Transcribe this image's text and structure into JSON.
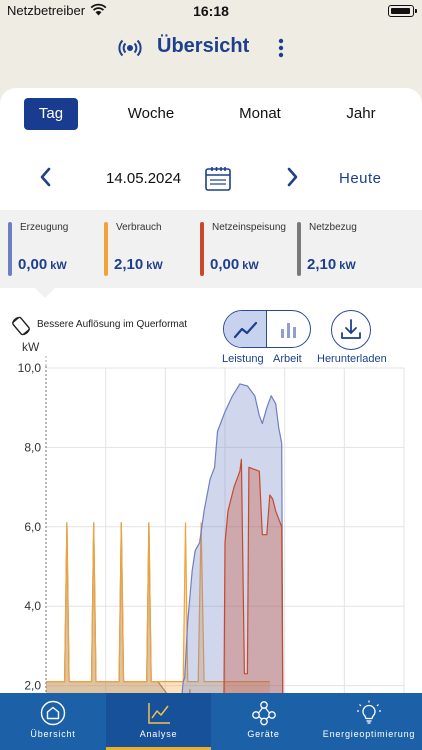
{
  "status_bar": {
    "carrier": "Netzbetreiber",
    "time": "16:18"
  },
  "header": {
    "title": "Übersicht"
  },
  "tabs": [
    {
      "label": "Tag",
      "active": true
    },
    {
      "label": "Woche",
      "active": false
    },
    {
      "label": "Monat",
      "active": false
    },
    {
      "label": "Jahr",
      "active": false
    }
  ],
  "date_nav": {
    "date": "14.05.2024",
    "today_label": "Heute"
  },
  "stats": [
    {
      "label": "Erzeugung",
      "value": "0,00",
      "unit": "kW",
      "color": "#6d7fc2"
    },
    {
      "label": "Verbrauch",
      "value": "2,10",
      "unit": "kW",
      "color": "#f2a23a"
    },
    {
      "label": "Netzeinspeisung",
      "value": "0,00",
      "unit": "kW",
      "color": "#c7492b"
    },
    {
      "label": "Netzbezug",
      "value": "2,10",
      "unit": "kW",
      "color": "#7a7a7a"
    }
  ],
  "chart_controls": {
    "rotate_hint": "Bessere Auflösung im Querformat",
    "mode_power": "Leistung",
    "mode_energy": "Arbeit",
    "download": "Herunterladen"
  },
  "chart_data": {
    "type": "area",
    "ylabel": "kW",
    "ylim": [
      0,
      10
    ],
    "yticks": [
      "10,0",
      "8,0",
      "6,0",
      "4,0",
      "2,0"
    ],
    "x_unit": "hour of day",
    "xlim": [
      0,
      24
    ],
    "grid": true,
    "series": [
      {
        "name": "Netzbezug",
        "color": "#7a7a7a",
        "points": [
          [
            0,
            2.1
          ],
          [
            1.25,
            2.1
          ],
          [
            1.4,
            6.1
          ],
          [
            1.55,
            2.1
          ],
          [
            3.05,
            2.1
          ],
          [
            3.2,
            6.1
          ],
          [
            3.35,
            2.1
          ],
          [
            4.9,
            2.1
          ],
          [
            5.05,
            6.1
          ],
          [
            5.2,
            2.1
          ],
          [
            6.75,
            2.1
          ],
          [
            6.9,
            6.1
          ],
          [
            7.05,
            2.1
          ],
          [
            7.5,
            2.1
          ],
          [
            8.1,
            1.8
          ],
          [
            8.7,
            1.2
          ],
          [
            9.2,
            0.6
          ],
          [
            9.5,
            0.2
          ],
          [
            9.65,
            1.9
          ],
          [
            9.75,
            0.1
          ],
          [
            10.3,
            0.05
          ],
          [
            13.5,
            0
          ],
          [
            15,
            0
          ]
        ]
      },
      {
        "name": "Verbrauch",
        "color": "#f2a23a",
        "points": [
          [
            0,
            2.1
          ],
          [
            1.25,
            2.1
          ],
          [
            1.4,
            6.1
          ],
          [
            1.55,
            2.1
          ],
          [
            3.05,
            2.1
          ],
          [
            3.2,
            6.1
          ],
          [
            3.35,
            2.1
          ],
          [
            4.9,
            2.1
          ],
          [
            5.05,
            6.1
          ],
          [
            5.2,
            2.1
          ],
          [
            6.75,
            2.1
          ],
          [
            6.9,
            6.1
          ],
          [
            7.05,
            2.1
          ],
          [
            9.2,
            2.1
          ],
          [
            9.35,
            6.1
          ],
          [
            9.5,
            2.1
          ],
          [
            10.2,
            2.1
          ],
          [
            10.4,
            6.1
          ],
          [
            10.6,
            2.1
          ],
          [
            12.5,
            2.1
          ],
          [
            15,
            2.1
          ]
        ]
      },
      {
        "name": "Erzeugung",
        "color": "#6d7fc2",
        "points": [
          [
            0,
            0
          ],
          [
            7,
            0
          ],
          [
            7.5,
            0.1
          ],
          [
            8,
            0.3
          ],
          [
            8.5,
            0.7
          ],
          [
            9,
            1.3
          ],
          [
            9.2,
            2.1
          ],
          [
            9.3,
            2.2
          ],
          [
            9.5,
            3.6
          ],
          [
            9.8,
            4.9
          ],
          [
            10,
            5.4
          ],
          [
            10.3,
            5.6
          ],
          [
            10.6,
            6.4
          ],
          [
            11,
            7.2
          ],
          [
            11.3,
            7.5
          ],
          [
            11.5,
            8.4
          ],
          [
            12,
            8.9
          ],
          [
            12.5,
            9.3
          ],
          [
            13,
            9.6
          ],
          [
            13.5,
            9.55
          ],
          [
            14,
            9.3
          ],
          [
            14.3,
            8.8
          ],
          [
            14.5,
            8.6
          ],
          [
            14.8,
            9.0
          ],
          [
            15.1,
            9.3
          ],
          [
            15.4,
            9.1
          ],
          [
            15.6,
            8.5
          ],
          [
            15.8,
            8.1
          ],
          [
            15.9,
            0
          ]
        ]
      },
      {
        "name": "Netzeinspeisung",
        "color": "#c7492b",
        "points": [
          [
            0,
            0
          ],
          [
            11.9,
            0
          ],
          [
            12.0,
            5.6
          ],
          [
            12.2,
            6.4
          ],
          [
            12.6,
            7.0
          ],
          [
            13,
            7.4
          ],
          [
            13.1,
            7.7
          ],
          [
            13.3,
            2.3
          ],
          [
            13.5,
            2.3
          ],
          [
            13.6,
            7.5
          ],
          [
            14.3,
            7.4
          ],
          [
            14.5,
            5.8
          ],
          [
            14.8,
            5.8
          ],
          [
            15,
            6.8
          ],
          [
            15.2,
            6.7
          ],
          [
            15.4,
            6.4
          ],
          [
            15.6,
            6.2
          ],
          [
            15.8,
            6.0
          ],
          [
            15.9,
            0
          ]
        ]
      }
    ]
  },
  "bottom_nav": [
    {
      "label": "Übersicht",
      "active": false
    },
    {
      "label": "Analyse",
      "active": true
    },
    {
      "label": "Geräte",
      "active": false
    },
    {
      "label": "Energieoptimierung",
      "active": false
    }
  ]
}
